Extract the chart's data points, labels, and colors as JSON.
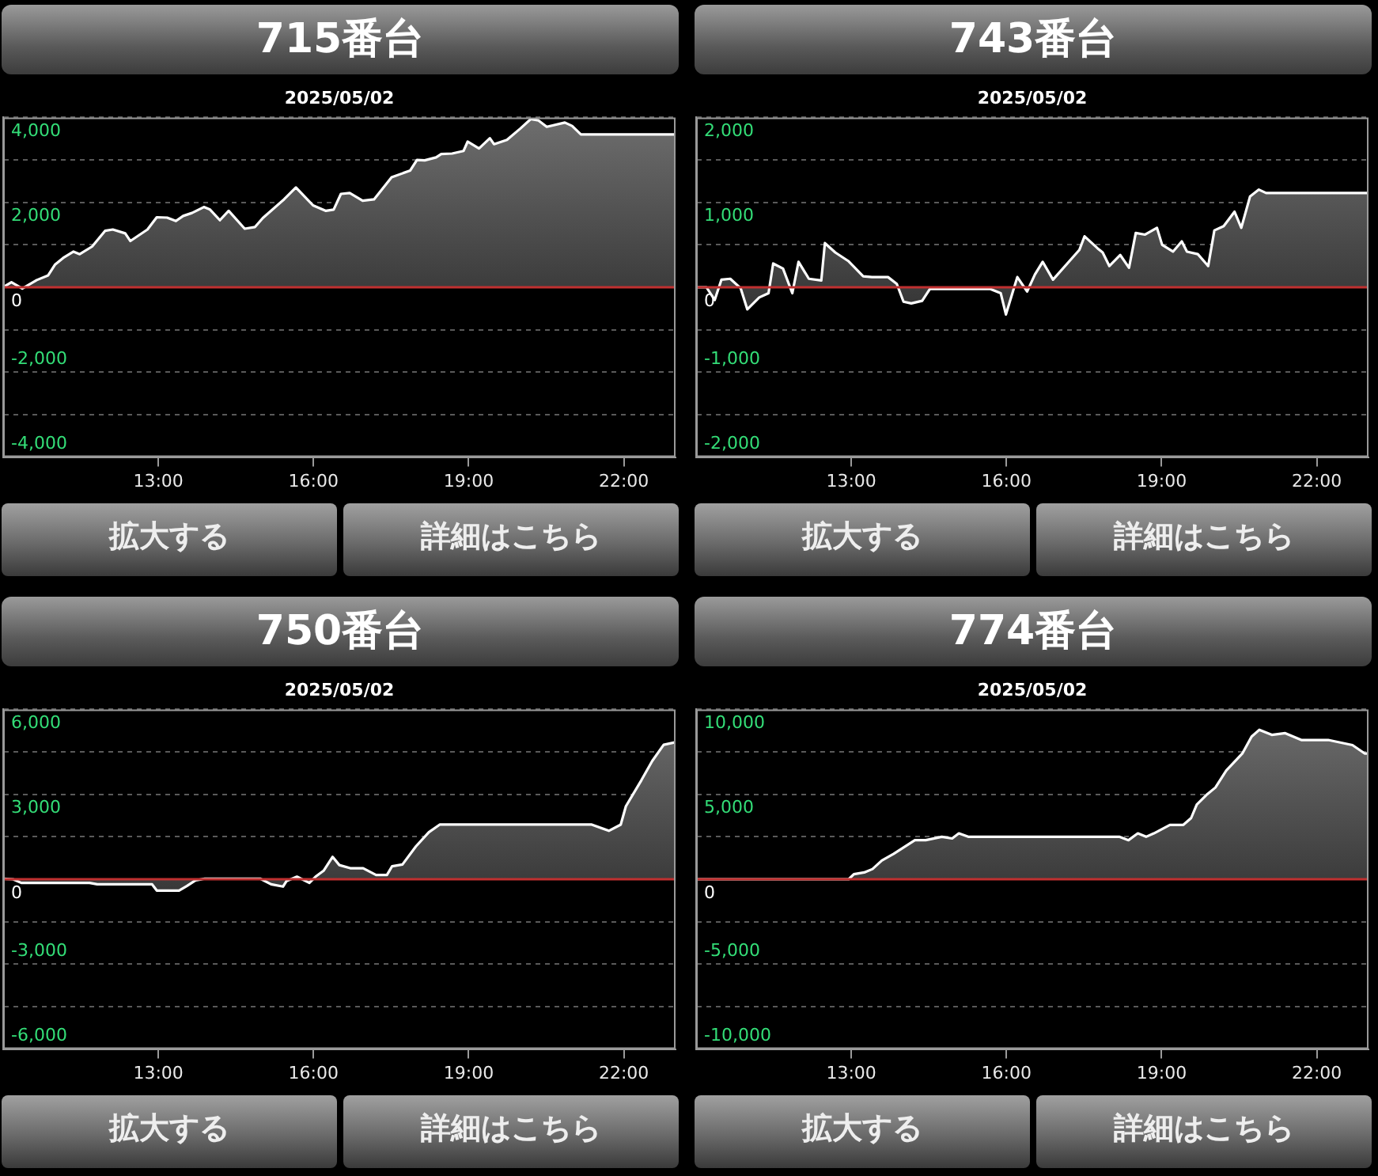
{
  "chart_data": [
    {
      "type": "area",
      "title": "715番台",
      "subtitle": "2025/05/02",
      "annotations": [
        "拡大する",
        "詳細はこちら"
      ],
      "grid": "y",
      "legend": false,
      "marker": "none",
      "xlim": [
        10,
        23
      ],
      "xticks": [
        {
          "value": 13,
          "label": "13:00"
        },
        {
          "value": 16,
          "label": "16:00"
        },
        {
          "value": 19,
          "label": "19:00"
        },
        {
          "value": 22,
          "label": "22:00"
        }
      ],
      "ylim": [
        -4000,
        4000
      ],
      "yticks": [
        {
          "value": -4000,
          "label": "-4,000"
        },
        {
          "value": -3000,
          "label": null
        },
        {
          "value": -2000,
          "label": "-2,000"
        },
        {
          "value": -1000,
          "label": null
        },
        {
          "value": 0,
          "label": "0"
        },
        {
          "value": 1000,
          "label": null
        },
        {
          "value": 2000,
          "label": "2,000"
        },
        {
          "value": 3000,
          "label": null
        },
        {
          "value": 4000,
          "label": "4,000"
        }
      ],
      "ref_lines": [
        {
          "axis": "y",
          "value": 0,
          "color": "#c03030"
        }
      ],
      "x": [
        10,
        10.16,
        10.37,
        10.65,
        10.87,
        11,
        11.16,
        11.36,
        11.48,
        11.72,
        11.97,
        12.12,
        12.36,
        12.46,
        12.79,
        12.97,
        13.17,
        13.34,
        13.48,
        13.65,
        13.88,
        14,
        14.19,
        14.36,
        14.67,
        14.87,
        15.02,
        15.43,
        15.66,
        15.99,
        16.24,
        16.39,
        16.53,
        16.7,
        16.95,
        17.17,
        17.51,
        17.87,
        18,
        18.15,
        18.37,
        18.47,
        18.68,
        18.9,
        18.98,
        19.2,
        19.41,
        19.49,
        19.74,
        20,
        20.2,
        20.35,
        20.51,
        20.86,
        21,
        21.17,
        23
      ],
      "series": [
        {
          "color": "#ffffff",
          "values": [
            0,
            120,
            -30,
            170,
            280,
            530,
            690,
            840,
            780,
            960,
            1330,
            1360,
            1270,
            1090,
            1360,
            1650,
            1640,
            1560,
            1680,
            1750,
            1890,
            1830,
            1580,
            1800,
            1380,
            1420,
            1630,
            2070,
            2350,
            1930,
            1800,
            1830,
            2200,
            2220,
            2040,
            2070,
            2590,
            2750,
            3000,
            2990,
            3060,
            3140,
            3150,
            3210,
            3430,
            3270,
            3510,
            3370,
            3470,
            3740,
            3960,
            3930,
            3780,
            3880,
            3800,
            3600,
            3600
          ]
        }
      ]
    },
    {
      "type": "area",
      "title": "743番台",
      "subtitle": "2025/05/02",
      "annotations": [
        "拡大する",
        "詳細はこちら"
      ],
      "grid": "y",
      "legend": false,
      "marker": "none",
      "xlim": [
        10,
        23
      ],
      "xticks": [
        {
          "value": 13,
          "label": "13:00"
        },
        {
          "value": 16,
          "label": "16:00"
        },
        {
          "value": 19,
          "label": "19:00"
        },
        {
          "value": 22,
          "label": "22:00"
        }
      ],
      "ylim": [
        -2000,
        2000
      ],
      "yticks": [
        {
          "value": -2000,
          "label": "-2,000"
        },
        {
          "value": -1500,
          "label": null
        },
        {
          "value": -1000,
          "label": "-1,000"
        },
        {
          "value": -500,
          "label": null
        },
        {
          "value": 0,
          "label": "0"
        },
        {
          "value": 500,
          "label": null
        },
        {
          "value": 1000,
          "label": "1,000"
        },
        {
          "value": 1500,
          "label": null
        },
        {
          "value": 2000,
          "label": "2,000"
        }
      ],
      "ref_lines": [
        {
          "axis": "y",
          "value": 0,
          "color": "#c03030"
        }
      ],
      "x": [
        10,
        10.2,
        10.36,
        10.49,
        10.66,
        10.86,
        10.99,
        11.22,
        11.4,
        11.49,
        11.68,
        11.86,
        11.98,
        12.18,
        12.42,
        12.49,
        12.69,
        12.94,
        13.23,
        13.4,
        13.71,
        13.88,
        14.01,
        14.16,
        14.37,
        14.52,
        15.69,
        15.89,
        15.99,
        16.21,
        16.4,
        16.55,
        16.7,
        16.9,
        17.41,
        17.51,
        17.76,
        17.86,
        17.99,
        18.2,
        18.37,
        18.5,
        18.68,
        18.91,
        19.01,
        19.22,
        19.39,
        19.49,
        19.7,
        19.9,
        20.02,
        20.2,
        20.41,
        20.54,
        20.71,
        20.88,
        21.02,
        23
      ],
      "series": [
        {
          "color": "#ffffff",
          "values": [
            0,
            0,
            -150,
            90,
            100,
            -10,
            -260,
            -120,
            -70,
            280,
            220,
            -70,
            300,
            100,
            80,
            520,
            410,
            310,
            130,
            120,
            120,
            40,
            -170,
            -190,
            -160,
            -20,
            -20,
            -70,
            -320,
            120,
            -50,
            150,
            300,
            90,
            440,
            600,
            460,
            410,
            250,
            380,
            230,
            640,
            620,
            700,
            500,
            420,
            540,
            420,
            390,
            250,
            670,
            720,
            890,
            700,
            1070,
            1150,
            1110,
            1110
          ]
        }
      ]
    },
    {
      "type": "area",
      "title": "750番台",
      "subtitle": "2025/05/02",
      "annotations": [
        "拡大する",
        "詳細はこちら"
      ],
      "grid": "y",
      "legend": false,
      "marker": "none",
      "xlim": [
        10,
        23
      ],
      "xticks": [
        {
          "value": 13,
          "label": "13:00"
        },
        {
          "value": 16,
          "label": "16:00"
        },
        {
          "value": 19,
          "label": "19:00"
        },
        {
          "value": 22,
          "label": "22:00"
        }
      ],
      "ylim": [
        -6000,
        6000
      ],
      "yticks": [
        {
          "value": -6000,
          "label": "-6,000"
        },
        {
          "value": -4500,
          "label": null
        },
        {
          "value": -3000,
          "label": "-3,000"
        },
        {
          "value": -1500,
          "label": null
        },
        {
          "value": 0,
          "label": "0"
        },
        {
          "value": 1500,
          "label": null
        },
        {
          "value": 3000,
          "label": "3,000"
        },
        {
          "value": 4500,
          "label": null
        },
        {
          "value": 6000,
          "label": "6,000"
        }
      ],
      "ref_lines": [
        {
          "axis": "y",
          "value": 0,
          "color": "#c03030"
        }
      ],
      "x": [
        10,
        10.19,
        10.35,
        11.67,
        11.82,
        12.88,
        12.97,
        13.4,
        13.55,
        13.72,
        13.9,
        14.97,
        15.18,
        15.41,
        15.48,
        15.68,
        15.92,
        16.04,
        16.2,
        16.37,
        16.5,
        16.71,
        16.96,
        17.21,
        17.42,
        17.52,
        17.72,
        17.98,
        18.23,
        18.44,
        21.38,
        21.71,
        21.94,
        22.04,
        22.34,
        22.55,
        22.77,
        23
      ],
      "series": [
        {
          "color": "#ffffff",
          "values": [
            20,
            0,
            -130,
            -130,
            -180,
            -180,
            -400,
            -400,
            -240,
            -40,
            20,
            20,
            -180,
            -260,
            -60,
            90,
            -130,
            90,
            310,
            790,
            500,
            390,
            390,
            150,
            150,
            460,
            520,
            1160,
            1660,
            1930,
            1930,
            1710,
            1930,
            2580,
            3500,
            4180,
            4750,
            4840
          ]
        }
      ]
    },
    {
      "type": "area",
      "title": "774番台",
      "subtitle": "2025/05/02",
      "annotations": [
        "拡大する",
        "詳細はこちら"
      ],
      "grid": "y",
      "legend": false,
      "marker": "none",
      "xlim": [
        10,
        23
      ],
      "xticks": [
        {
          "value": 13,
          "label": "13:00"
        },
        {
          "value": 16,
          "label": "16:00"
        },
        {
          "value": 19,
          "label": "19:00"
        },
        {
          "value": 22,
          "label": "22:00"
        }
      ],
      "ylim": [
        -10000,
        10000
      ],
      "yticks": [
        {
          "value": -10000,
          "label": "-10,000"
        },
        {
          "value": -7500,
          "label": null
        },
        {
          "value": -5000,
          "label": "-5,000"
        },
        {
          "value": -2500,
          "label": null
        },
        {
          "value": 0,
          "label": "0"
        },
        {
          "value": 2500,
          "label": null
        },
        {
          "value": 5000,
          "label": "5,000"
        },
        {
          "value": 7500,
          "label": null
        },
        {
          "value": 10000,
          "label": "10,000"
        }
      ],
      "ref_lines": [
        {
          "axis": "y",
          "value": 0,
          "color": "#c03030"
        }
      ],
      "x": [
        10,
        12.95,
        13.05,
        13.25,
        13.41,
        13.59,
        13.82,
        14.23,
        14.44,
        14.75,
        14.95,
        15.08,
        15.26,
        18.18,
        18.36,
        18.54,
        18.7,
        18.85,
        19.16,
        19.42,
        19.57,
        19.68,
        19.88,
        20.04,
        20.25,
        20.56,
        20.74,
        20.89,
        21.13,
        21.39,
        21.7,
        22.22,
        22.69,
        22.93,
        23
      ],
      "series": [
        {
          "color": "#ffffff",
          "values": [
            0,
            0,
            300,
            400,
            600,
            1100,
            1500,
            2300,
            2300,
            2500,
            2400,
            2700,
            2500,
            2500,
            2300,
            2700,
            2500,
            2700,
            3200,
            3200,
            3600,
            4400,
            5000,
            5400,
            6400,
            7400,
            8400,
            8800,
            8500,
            8600,
            8200,
            8200,
            7900,
            7400,
            7400
          ]
        }
      ]
    }
  ]
}
